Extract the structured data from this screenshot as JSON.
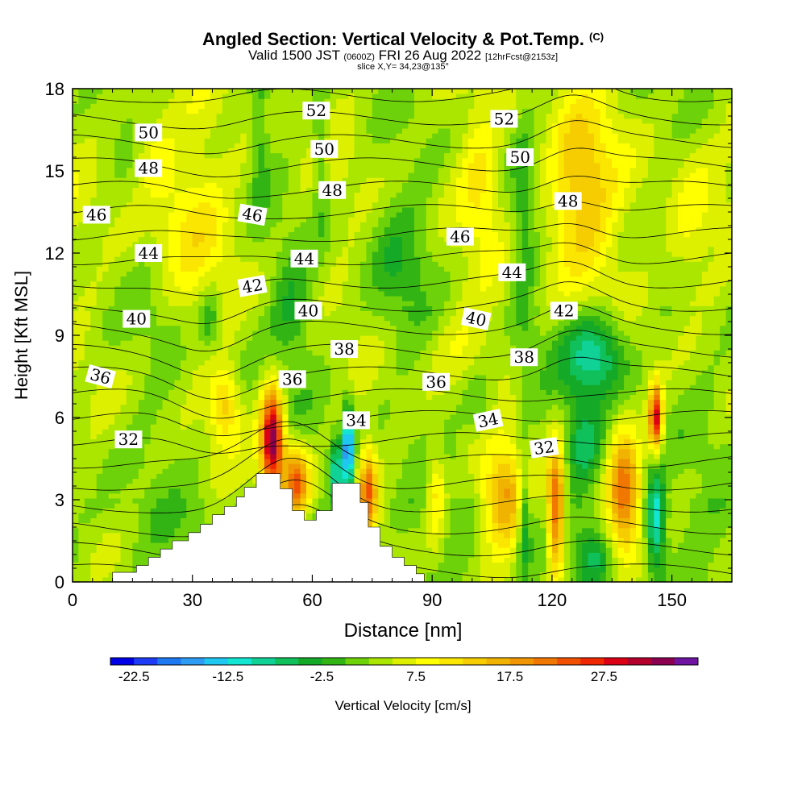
{
  "title": {
    "main": "Angled Section: Vertical Velocity & Pot.Temp.",
    "main_unit": "(C)",
    "valid_a": "Valid 1500 JST",
    "valid_z": "(0600Z)",
    "valid_b": "FRI 26 Aug 2022",
    "fcst": "[12hrFcst@2153z]",
    "slice": "slice X,Y= 34,23@135°"
  },
  "chart_data": {
    "type": "heatmap",
    "xlabel": "Distance [nm]",
    "ylabel": "Height [Kft MSL]",
    "xlim": [
      0,
      165
    ],
    "ylim": [
      0,
      18
    ],
    "x_ticks": [
      0,
      30,
      60,
      90,
      120,
      150
    ],
    "y_ticks": [
      0,
      3,
      6,
      9,
      12,
      15,
      18
    ],
    "colorbar": {
      "label": "Vertical Velocity [cm/s]",
      "tick_labels": [
        "-22.5",
        "-12.5",
        "-2.5",
        "7.5",
        "17.5",
        "27.5"
      ],
      "tick_values": [
        -22.5,
        -12.5,
        -2.5,
        7.5,
        17.5,
        27.5
      ],
      "min": -25,
      "step": 2.5,
      "colors": [
        "#0000e6",
        "#1e3cf5",
        "#1e78f0",
        "#2e9cf2",
        "#1ec8f0",
        "#12e6d2",
        "#10d296",
        "#10c05a",
        "#14aa28",
        "#32b414",
        "#6ed20a",
        "#aae600",
        "#dcf000",
        "#ffff00",
        "#fae600",
        "#f5cd00",
        "#f0b400",
        "#f09600",
        "#f07800",
        "#f05000",
        "#f02800",
        "#dc0014",
        "#b4002d",
        "#8c0050",
        "#6e14a0"
      ]
    },
    "theta_contour_labels": [
      {
        "x": 14,
        "y": 5.2,
        "text": "32",
        "angle": 0
      },
      {
        "x": 118,
        "y": 4.9,
        "text": "32",
        "angle": -8
      },
      {
        "x": 7,
        "y": 7.5,
        "text": "36",
        "angle": 15
      },
      {
        "x": 55,
        "y": 7.4,
        "text": "36",
        "angle": 0
      },
      {
        "x": 91,
        "y": 7.3,
        "text": "36",
        "angle": 0
      },
      {
        "x": 71,
        "y": 5.9,
        "text": "34",
        "angle": 0
      },
      {
        "x": 104,
        "y": 5.9,
        "text": "34",
        "angle": -12
      },
      {
        "x": 68,
        "y": 8.5,
        "text": "38",
        "angle": 0
      },
      {
        "x": 113,
        "y": 8.2,
        "text": "38",
        "angle": 0
      },
      {
        "x": 16,
        "y": 9.6,
        "text": "40",
        "angle": 0
      },
      {
        "x": 59,
        "y": 9.9,
        "text": "40",
        "angle": 0
      },
      {
        "x": 101,
        "y": 9.6,
        "text": "40",
        "angle": 12
      },
      {
        "x": 45,
        "y": 10.8,
        "text": "42",
        "angle": -10
      },
      {
        "x": 123,
        "y": 9.9,
        "text": "42",
        "angle": 0
      },
      {
        "x": 19,
        "y": 12.0,
        "text": "44",
        "angle": 0
      },
      {
        "x": 58,
        "y": 11.8,
        "text": "44",
        "angle": 0
      },
      {
        "x": 110,
        "y": 11.3,
        "text": "44",
        "angle": 0
      },
      {
        "x": 6,
        "y": 13.4,
        "text": "46",
        "angle": 0
      },
      {
        "x": 45,
        "y": 13.4,
        "text": "46",
        "angle": 10
      },
      {
        "x": 97,
        "y": 12.6,
        "text": "46",
        "angle": 0
      },
      {
        "x": 19,
        "y": 15.1,
        "text": "48",
        "angle": 0
      },
      {
        "x": 65,
        "y": 14.3,
        "text": "48",
        "angle": 0
      },
      {
        "x": 124,
        "y": 13.9,
        "text": "48",
        "angle": 0
      },
      {
        "x": 19,
        "y": 16.4,
        "text": "50",
        "angle": 0
      },
      {
        "x": 63,
        "y": 15.8,
        "text": "50",
        "angle": 0
      },
      {
        "x": 112,
        "y": 15.5,
        "text": "50",
        "angle": 0
      },
      {
        "x": 61,
        "y": 17.2,
        "text": "52",
        "angle": 0
      },
      {
        "x": 108,
        "y": 16.9,
        "text": "52",
        "angle": 0
      }
    ],
    "terrain": [
      [
        0,
        0
      ],
      [
        10,
        0
      ],
      [
        10,
        0.35
      ],
      [
        16,
        0.35
      ],
      [
        16,
        0.6
      ],
      [
        19,
        0.6
      ],
      [
        19,
        0.9
      ],
      [
        22,
        0.9
      ],
      [
        22,
        1.2
      ],
      [
        25,
        1.2
      ],
      [
        25,
        1.5
      ],
      [
        29,
        1.5
      ],
      [
        29,
        1.8
      ],
      [
        32,
        1.8
      ],
      [
        32,
        2.1
      ],
      [
        35,
        2.1
      ],
      [
        35,
        2.45
      ],
      [
        38,
        2.45
      ],
      [
        38,
        2.75
      ],
      [
        41,
        2.75
      ],
      [
        41,
        3.1
      ],
      [
        43,
        3.1
      ],
      [
        43,
        3.45
      ],
      [
        46,
        3.45
      ],
      [
        46,
        3.95
      ],
      [
        52,
        3.95
      ],
      [
        52,
        3.4
      ],
      [
        55,
        3.4
      ],
      [
        55,
        2.6
      ],
      [
        58,
        2.6
      ],
      [
        58,
        2.25
      ],
      [
        61,
        2.25
      ],
      [
        61,
        2.6
      ],
      [
        65,
        2.6
      ],
      [
        65,
        3.6
      ],
      [
        72,
        3.6
      ],
      [
        72,
        2.9
      ],
      [
        74,
        2.9
      ],
      [
        74,
        2.0
      ],
      [
        77,
        2.0
      ],
      [
        77,
        1.3
      ],
      [
        80,
        1.3
      ],
      [
        80,
        0.9
      ],
      [
        83,
        0.9
      ],
      [
        83,
        0.6
      ],
      [
        86,
        0.6
      ],
      [
        86,
        0.3
      ],
      [
        88,
        0.3
      ],
      [
        88,
        0
      ]
    ],
    "updrafts": [
      {
        "x": 50,
        "y": 5.2,
        "sx": 2.8,
        "sy": 1.8,
        "w": 32
      },
      {
        "x": 56,
        "y": 3.6,
        "sx": 3.2,
        "sy": 1.3,
        "w": 20
      },
      {
        "x": 74,
        "y": 3.3,
        "sx": 2.2,
        "sy": 1.6,
        "w": 18
      },
      {
        "x": 38,
        "y": 6.5,
        "sx": 3.5,
        "sy": 1.3,
        "w": 10
      },
      {
        "x": 108,
        "y": 3.0,
        "sx": 5.5,
        "sy": 1.8,
        "w": 15
      },
      {
        "x": 121,
        "y": 2.6,
        "sx": 2.2,
        "sy": 2.4,
        "w": 22
      },
      {
        "x": 138,
        "y": 3.1,
        "sx": 3.8,
        "sy": 2.4,
        "w": 17
      },
      {
        "x": 146,
        "y": 6.0,
        "sx": 1.6,
        "sy": 1.2,
        "w": 26
      },
      {
        "x": 91,
        "y": 3.2,
        "sx": 2.5,
        "sy": 1.8,
        "w": 9
      },
      {
        "x": 127,
        "y": 14.2,
        "sx": 8,
        "sy": 3.2,
        "w": 12
      },
      {
        "x": 30,
        "y": 13.2,
        "sx": 9,
        "sy": 2.5,
        "w": 6
      },
      {
        "x": 20,
        "y": 15.8,
        "sx": 5,
        "sy": 1.6,
        "w": 5
      },
      {
        "x": 102,
        "y": 14.6,
        "sx": 5,
        "sy": 2.2,
        "w": 6
      },
      {
        "x": 97,
        "y": 8.8,
        "sx": 10,
        "sy": 1.6,
        "w": 4
      },
      {
        "x": 32,
        "y": 9.0,
        "sx": 5,
        "sy": 1.4,
        "w": 4
      },
      {
        "x": 155,
        "y": 12.5,
        "sx": 6,
        "sy": 3,
        "w": 5
      }
    ],
    "downdrafts": [
      {
        "x": 69,
        "y": 4.9,
        "sx": 1.3,
        "sy": 1.5,
        "w": -24
      },
      {
        "x": 66,
        "y": 4.0,
        "sx": 1.6,
        "sy": 1.2,
        "w": -14
      },
      {
        "x": 131,
        "y": 8.3,
        "sx": 7.5,
        "sy": 1.5,
        "w": -13
      },
      {
        "x": 146,
        "y": 2.3,
        "sx": 2.4,
        "sy": 1.8,
        "w": -16
      },
      {
        "x": 113,
        "y": 2.5,
        "sx": 1.6,
        "sy": 2.2,
        "w": -10
      },
      {
        "x": 128,
        "y": 5.0,
        "sx": 4.5,
        "sy": 1.6,
        "w": -9
      },
      {
        "x": 34,
        "y": 9.5,
        "sx": 3,
        "sy": 1.3,
        "w": -8
      },
      {
        "x": 55,
        "y": 10.0,
        "sx": 5,
        "sy": 1.8,
        "w": -6
      },
      {
        "x": 113,
        "y": 12.5,
        "sx": 3,
        "sy": 4,
        "w": -6
      },
      {
        "x": 82,
        "y": 11.8,
        "sx": 8,
        "sy": 2.5,
        "w": -5
      },
      {
        "x": 47,
        "y": 16.5,
        "sx": 2.0,
        "sy": 3.0,
        "w": -5
      },
      {
        "x": 62,
        "y": 15.5,
        "sx": 2.0,
        "sy": 3.0,
        "w": -5
      },
      {
        "x": 102,
        "y": 6.5,
        "sx": 4,
        "sy": 1.2,
        "w": -5
      },
      {
        "x": 130,
        "y": 1.0,
        "sx": 4,
        "sy": 1.0,
        "w": -6
      }
    ]
  }
}
